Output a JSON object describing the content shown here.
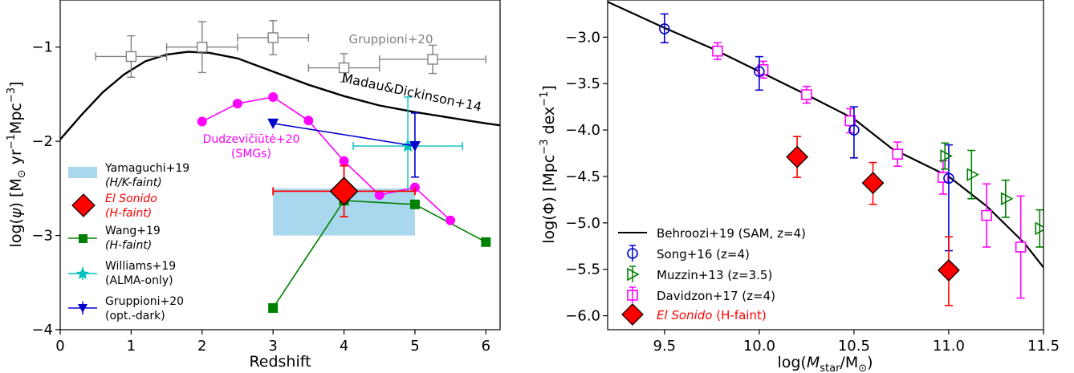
{
  "chart_data": [
    {
      "type": "scatter",
      "xlabel": "Redshift",
      "ylabel_parts": {
        "a": "log(",
        "b": "ψ",
        "c": ") [M",
        "d": "⊙",
        "e": " yr",
        "f": "−1",
        "g": "Mpc",
        "h": "−3",
        "i": "]"
      },
      "xlim": [
        0,
        6.2
      ],
      "ylim": [
        -4,
        -0.5
      ],
      "x_ticks": [
        0,
        1,
        2,
        3,
        4,
        5,
        6
      ],
      "y_ticks": [
        -4,
        -3,
        -2,
        -1
      ],
      "y_tick_labels": [
        "−4",
        "−3",
        "−2",
        "−1"
      ],
      "colors": {
        "madau": "#000000",
        "gruppioni": "#808080",
        "dudzeviciute": "#ff00ff",
        "gruppioni_dark": "#0000cc",
        "williams": "#00bfbf",
        "wang": "#008000",
        "el_sonido": "#ff0000",
        "yamaguchi": "#a9d8ee"
      },
      "madau_curve": {
        "x": [
          0,
          0.3,
          0.6,
          0.9,
          1.2,
          1.5,
          1.8,
          2.1,
          2.5,
          3.0,
          3.5,
          4.0,
          4.5,
          5.0,
          5.5,
          6.0,
          6.2
        ],
        "y": [
          -1.98,
          -1.72,
          -1.48,
          -1.29,
          -1.15,
          -1.08,
          -1.05,
          -1.06,
          -1.12,
          -1.26,
          -1.4,
          -1.52,
          -1.62,
          -1.69,
          -1.75,
          -1.81,
          -1.83
        ]
      },
      "gruppioni20": {
        "x": [
          1.0,
          2.0,
          3.0,
          4.0,
          5.25
        ],
        "y": [
          -1.1,
          -1.0,
          -0.9,
          -1.22,
          -1.13
        ],
        "xerr": [
          0.5,
          0.5,
          0.5,
          0.5,
          0.75
        ],
        "yerr": [
          0.22,
          0.27,
          0.18,
          0.15,
          0.15
        ]
      },
      "dudzeviciute": {
        "x": [
          2.0,
          2.5,
          3.0,
          3.5,
          4.0,
          4.5,
          5.0,
          5.5
        ],
        "y": [
          -1.79,
          -1.6,
          -1.53,
          -1.78,
          -2.21,
          -2.57,
          -2.49,
          -2.84
        ]
      },
      "gruppioni_dark": {
        "x": [
          3.0,
          5.0
        ],
        "y": [
          -1.81,
          -2.05
        ],
        "yerr_lo": [
          0.0,
          0.33
        ],
        "yerr_hi": [
          0.0,
          0.35
        ]
      },
      "williams": {
        "x": [
          4.9
        ],
        "y": [
          -2.05
        ],
        "xerr": [
          0.77
        ],
        "yerr_lo": [
          0.48
        ],
        "yerr_hi": [
          0.52
        ]
      },
      "wang": {
        "x": [
          3.0,
          4.0,
          5.0,
          6.0
        ],
        "y": [
          -3.77,
          -2.63,
          -2.67,
          -3.07
        ]
      },
      "el_sonido": {
        "x": [
          4.0
        ],
        "y": [
          -2.53
        ],
        "xerr": [
          1.0
        ],
        "yerr": [
          0.27
        ]
      },
      "yamaguchi_box": {
        "x": [
          3.0,
          5.0
        ],
        "y": [
          -3.0,
          -2.5
        ]
      },
      "annotations": {
        "gruppioni": "Gruppioni+20",
        "madau": "Madau&Dickinson+14",
        "dudz1": "Dudzevičiūtė+20",
        "dudz2": "(SMGs)"
      },
      "legend": [
        {
          "line1": "Yamaguchi+19",
          "line2": "(H/K-faint)"
        },
        {
          "line1": "El Sonido",
          "line2": "(H-faint)"
        },
        {
          "line1": "Wang+19",
          "line2": "(H-faint)"
        },
        {
          "line1": "Williams+19",
          "line2": "(ALMA-only)"
        },
        {
          "line1": "Gruppioni+20",
          "line2": "(opt.-dark)"
        }
      ]
    },
    {
      "type": "scatter",
      "xlabel_parts": {
        "a": "log(",
        "b": "M",
        "c": "star",
        "d": "/M",
        "e": "⊙",
        "f": ")"
      },
      "ylabel_parts": {
        "a": "log(Φ) [Mpc",
        "b": "−3",
        "c": " dex",
        "d": "−1",
        "e": "]"
      },
      "xlim": [
        9.2,
        11.5
      ],
      "ylim": [
        -6.15,
        -2.6
      ],
      "x_ticks": [
        9.5,
        10.0,
        10.5,
        11.0,
        11.5
      ],
      "x_tick_labels": [
        "9.5",
        "10.0",
        "10.5",
        "11.0",
        "11.5"
      ],
      "y_ticks": [
        -6.0,
        -5.5,
        -5.0,
        -4.5,
        -4.0,
        -3.5,
        -3.0
      ],
      "y_tick_labels": [
        "−6.0",
        "−5.5",
        "−5.0",
        "−4.5",
        "−4.0",
        "−3.5",
        "−3.0"
      ],
      "behroozi": {
        "x": [
          9.2,
          9.5,
          9.75,
          10.0,
          10.25,
          10.5,
          10.7,
          10.9,
          11.0,
          11.2,
          11.4,
          11.5
        ],
        "y": [
          -2.62,
          -2.9,
          -3.12,
          -3.37,
          -3.62,
          -3.88,
          -4.2,
          -4.4,
          -4.5,
          -4.82,
          -5.22,
          -5.48
        ]
      },
      "song16": {
        "x": [
          9.5,
          10.0,
          10.5,
          11.0
        ],
        "y": [
          -2.91,
          -3.37,
          -4.0,
          -4.52
        ],
        "yerr_lo": [
          0.15,
          0.2,
          0.3,
          0.78
        ],
        "yerr_hi": [
          0.16,
          0.16,
          0.25,
          0.36
        ]
      },
      "muzzin13": {
        "x": [
          10.98,
          11.12,
          11.3,
          11.48
        ],
        "y": [
          -4.28,
          -4.48,
          -4.74,
          -5.06
        ],
        "yerr": [
          0.14,
          0.26,
          0.2,
          0.2
        ]
      },
      "davidzon17": {
        "x": [
          9.78,
          10.02,
          10.25,
          10.48,
          10.73,
          10.97,
          11.2,
          11.38
        ],
        "y": [
          -3.15,
          -3.35,
          -3.62,
          -3.9,
          -4.26,
          -4.51,
          -4.92,
          -5.26
        ],
        "yerr": [
          0.09,
          0.09,
          0.09,
          0.13,
          0.13,
          0.18,
          0.34,
          0.55
        ]
      },
      "el_sonido": {
        "x": [
          10.2,
          10.6,
          11.0
        ],
        "y": [
          -4.29,
          -4.57,
          -5.51
        ],
        "yerr_lo": [
          0.22,
          0.23,
          0.38
        ],
        "yerr_hi": [
          0.22,
          0.22,
          0.36
        ]
      },
      "legend": [
        {
          "label": "Behroozi+19 (SAM, z=4)"
        },
        {
          "label": "Song+16 (z=4)"
        },
        {
          "label": "Muzzin+13 (z=3.5)"
        },
        {
          "label": "Davidzon+17 (z=4)"
        },
        {
          "label1": "El Sonido",
          "label2": " (H-faint)"
        }
      ]
    }
  ]
}
